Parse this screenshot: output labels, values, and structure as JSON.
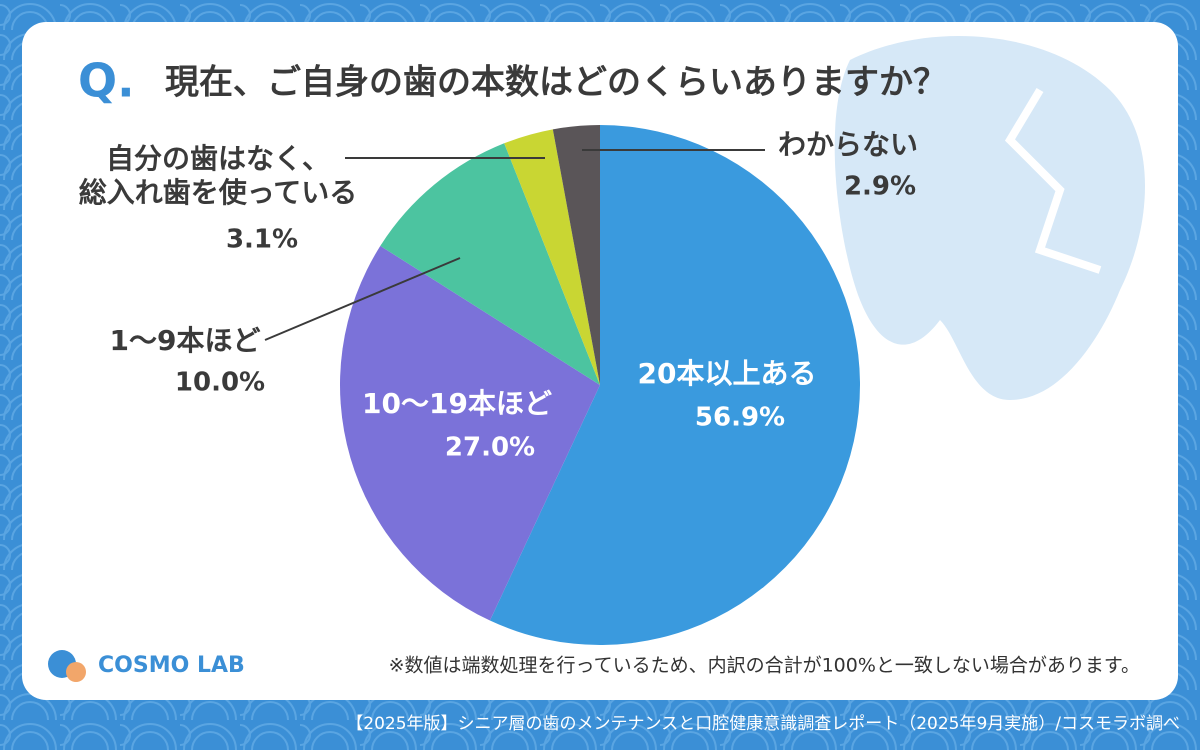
{
  "chart_data": {
    "type": "pie",
    "question_mark": "Q.",
    "title": "現在、ご自身の歯の本数はどのくらいありますか？",
    "categories": [
      "20本以上ある",
      "10〜19本ほど",
      "1〜9本ほど",
      "自分の歯はなく、\n総入れ歯を使っている",
      "わからない"
    ],
    "values": [
      56.9,
      27.0,
      10.0,
      3.1,
      2.9
    ],
    "value_labels": [
      "56.9%",
      "27.0%",
      "10.0%",
      "3.1%",
      "2.9%"
    ],
    "colors": [
      "#3a9ade",
      "#7b72d9",
      "#4cc4a0",
      "#c9d633",
      "#5a5558"
    ],
    "note": "※数値は端数処理を行っているため、内訳の合計が100%と一致しない場合があります。",
    "logo": "COSMO LAB",
    "footer": "【2025年版】シニア層の歯のメンテナンスと口腔健康意識調査レポート（2025年9月実施）/コスモラボ調べ"
  }
}
